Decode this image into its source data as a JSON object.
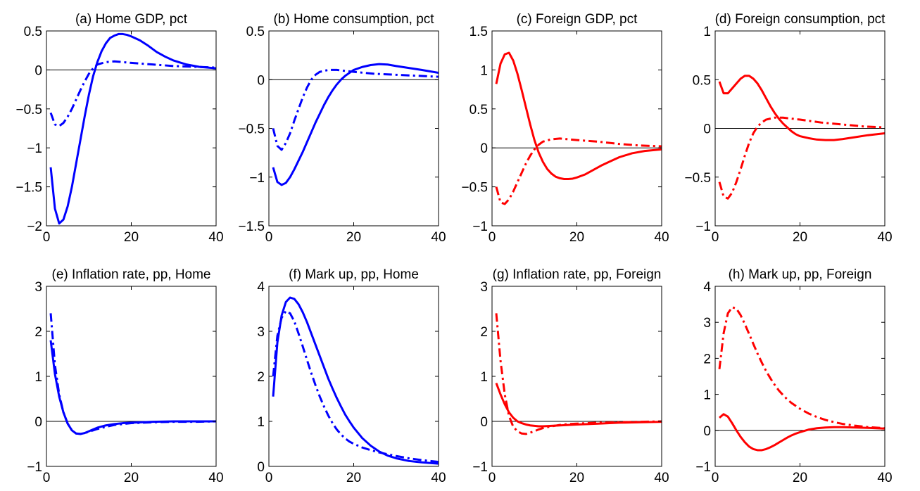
{
  "colors": {
    "blue": "#0000ff",
    "red": "#ff0000",
    "zero_line": "#000000",
    "axes": "#000000"
  },
  "chart_data": [
    {
      "type": "line",
      "title": "(a) Home GDP, pct",
      "xlabel": "",
      "ylabel": "",
      "xlim": [
        0,
        40
      ],
      "ylim": [
        -2,
        0.5
      ],
      "xticks": [
        0,
        20,
        40
      ],
      "xtick_labels": [
        "0",
        "20",
        "40"
      ],
      "yticks": [
        -2,
        -1.5,
        -1,
        -0.5,
        0,
        0.5
      ],
      "ytick_labels": [
        "−2",
        "−1.5",
        "−1",
        "−0.5",
        "0",
        "0.5"
      ],
      "grid": false,
      "zero_line": true,
      "color": "blue",
      "series": [
        {
          "style": "solid",
          "x": [
            1,
            2,
            3,
            4,
            5,
            6,
            7,
            8,
            9,
            10,
            11,
            12,
            13,
            14,
            15,
            16,
            17,
            18,
            19,
            20,
            22,
            24,
            26,
            28,
            30,
            33,
            36,
            40
          ],
          "y": [
            -1.25,
            -1.78,
            -1.97,
            -1.92,
            -1.75,
            -1.5,
            -1.2,
            -0.9,
            -0.6,
            -0.32,
            -0.08,
            0.1,
            0.24,
            0.34,
            0.41,
            0.44,
            0.46,
            0.46,
            0.45,
            0.43,
            0.38,
            0.31,
            0.23,
            0.17,
            0.12,
            0.07,
            0.04,
            0.02
          ]
        },
        {
          "style": "dashdot",
          "x": [
            1,
            2,
            3,
            4,
            5,
            6,
            7,
            8,
            9,
            10,
            11,
            12,
            14,
            16,
            18,
            20,
            25,
            30,
            35,
            40
          ],
          "y": [
            -0.55,
            -0.7,
            -0.72,
            -0.68,
            -0.6,
            -0.5,
            -0.38,
            -0.26,
            -0.15,
            -0.05,
            0.02,
            0.07,
            0.1,
            0.11,
            0.1,
            0.09,
            0.07,
            0.05,
            0.04,
            0.03
          ]
        }
      ]
    },
    {
      "type": "line",
      "title": "(b) Home consumption, pct",
      "xlabel": "",
      "ylabel": "",
      "xlim": [
        0,
        40
      ],
      "ylim": [
        -1.5,
        0.5
      ],
      "xticks": [
        0,
        20,
        40
      ],
      "xtick_labels": [
        "0",
        "20",
        "40"
      ],
      "yticks": [
        -1.5,
        -1,
        -0.5,
        0,
        0.5
      ],
      "ytick_labels": [
        "−1.5",
        "−1",
        "−0.5",
        "0",
        "0.5"
      ],
      "grid": false,
      "zero_line": true,
      "color": "blue",
      "series": [
        {
          "style": "solid",
          "x": [
            1,
            2,
            3,
            4,
            5,
            6,
            7,
            8,
            9,
            10,
            11,
            12,
            13,
            14,
            15,
            16,
            17,
            18,
            19,
            20,
            22,
            24,
            26,
            28,
            30,
            33,
            36,
            40
          ],
          "y": [
            -0.9,
            -1.05,
            -1.08,
            -1.06,
            -1.0,
            -0.92,
            -0.83,
            -0.74,
            -0.64,
            -0.54,
            -0.44,
            -0.35,
            -0.26,
            -0.18,
            -0.11,
            -0.05,
            0.0,
            0.04,
            0.07,
            0.1,
            0.13,
            0.15,
            0.16,
            0.155,
            0.14,
            0.12,
            0.1,
            0.07
          ]
        },
        {
          "style": "dashdot",
          "x": [
            1,
            2,
            3,
            4,
            5,
            6,
            7,
            8,
            9,
            10,
            11,
            12,
            14,
            16,
            18,
            20,
            25,
            30,
            35,
            40
          ],
          "y": [
            -0.5,
            -0.68,
            -0.72,
            -0.65,
            -0.55,
            -0.42,
            -0.3,
            -0.18,
            -0.08,
            0.0,
            0.05,
            0.08,
            0.1,
            0.1,
            0.09,
            0.08,
            0.06,
            0.05,
            0.04,
            0.03
          ]
        }
      ]
    },
    {
      "type": "line",
      "title": "(c) Foreign GDP, pct",
      "xlabel": "",
      "ylabel": "",
      "xlim": [
        0,
        40
      ],
      "ylim": [
        -1,
        1.5
      ],
      "xticks": [
        0,
        20,
        40
      ],
      "xtick_labels": [
        "0",
        "20",
        "40"
      ],
      "yticks": [
        -1,
        -0.5,
        0,
        0.5,
        1,
        1.5
      ],
      "ytick_labels": [
        "−1",
        "−0.5",
        "0",
        "0.5",
        "1",
        "1.5"
      ],
      "grid": false,
      "zero_line": true,
      "color": "red",
      "series": [
        {
          "style": "solid",
          "x": [
            1,
            2,
            3,
            4,
            5,
            6,
            7,
            8,
            9,
            10,
            11,
            12,
            13,
            14,
            15,
            16,
            17,
            18,
            19,
            20,
            22,
            24,
            26,
            28,
            30,
            33,
            36,
            40
          ],
          "y": [
            0.82,
            1.08,
            1.2,
            1.22,
            1.12,
            0.95,
            0.74,
            0.52,
            0.3,
            0.1,
            -0.06,
            -0.18,
            -0.27,
            -0.33,
            -0.37,
            -0.39,
            -0.4,
            -0.4,
            -0.395,
            -0.38,
            -0.34,
            -0.28,
            -0.22,
            -0.17,
            -0.12,
            -0.07,
            -0.04,
            -0.02
          ]
        },
        {
          "style": "dashdot",
          "x": [
            1,
            2,
            3,
            4,
            5,
            6,
            7,
            8,
            9,
            10,
            11,
            12,
            14,
            16,
            18,
            20,
            25,
            30,
            35,
            40
          ],
          "y": [
            -0.5,
            -0.7,
            -0.72,
            -0.66,
            -0.56,
            -0.44,
            -0.32,
            -0.2,
            -0.1,
            -0.02,
            0.04,
            0.08,
            0.11,
            0.12,
            0.11,
            0.1,
            0.08,
            0.05,
            0.03,
            0.02
          ]
        }
      ]
    },
    {
      "type": "line",
      "title": "(d) Foreign consumption, pct",
      "xlabel": "",
      "ylabel": "",
      "xlim": [
        0,
        40
      ],
      "ylim": [
        -1,
        1
      ],
      "xticks": [
        0,
        20,
        40
      ],
      "xtick_labels": [
        "0",
        "20",
        "40"
      ],
      "yticks": [
        -1,
        -0.5,
        0,
        0.5,
        1
      ],
      "ytick_labels": [
        "−1",
        "−0.5",
        "0",
        "0.5",
        "1"
      ],
      "grid": false,
      "zero_line": true,
      "color": "red",
      "series": [
        {
          "style": "solid",
          "x": [
            1,
            2,
            3,
            4,
            5,
            6,
            7,
            8,
            9,
            10,
            11,
            12,
            13,
            14,
            15,
            16,
            17,
            18,
            19,
            20,
            22,
            24,
            26,
            28,
            30,
            33,
            36,
            40
          ],
          "y": [
            0.48,
            0.36,
            0.36,
            0.41,
            0.46,
            0.51,
            0.54,
            0.54,
            0.51,
            0.46,
            0.39,
            0.31,
            0.23,
            0.16,
            0.1,
            0.05,
            0.01,
            -0.03,
            -0.06,
            -0.08,
            -0.1,
            -0.115,
            -0.12,
            -0.12,
            -0.11,
            -0.09,
            -0.07,
            -0.05
          ]
        },
        {
          "style": "dashdot",
          "x": [
            1,
            2,
            3,
            4,
            5,
            6,
            7,
            8,
            9,
            10,
            11,
            12,
            14,
            16,
            18,
            20,
            25,
            30,
            35,
            40
          ],
          "y": [
            -0.55,
            -0.7,
            -0.72,
            -0.66,
            -0.55,
            -0.42,
            -0.28,
            -0.15,
            -0.05,
            0.02,
            0.06,
            0.09,
            0.11,
            0.11,
            0.1,
            0.09,
            0.06,
            0.04,
            0.02,
            0.01
          ]
        }
      ]
    },
    {
      "type": "line",
      "title": "(e) Inflation rate, pp, Home",
      "xlabel": "",
      "ylabel": "",
      "xlim": [
        0,
        40
      ],
      "ylim": [
        -1,
        3
      ],
      "xticks": [
        0,
        20,
        40
      ],
      "xtick_labels": [
        "0",
        "20",
        "40"
      ],
      "yticks": [
        -1,
        0,
        1,
        2,
        3
      ],
      "ytick_labels": [
        "−1",
        "0",
        "1",
        "2",
        "3"
      ],
      "grid": false,
      "zero_line": true,
      "color": "blue",
      "series": [
        {
          "style": "solid",
          "x": [
            1,
            2,
            3,
            4,
            5,
            6,
            7,
            8,
            9,
            10,
            11,
            12,
            14,
            16,
            18,
            20,
            25,
            30,
            35,
            40
          ],
          "y": [
            1.8,
            1.05,
            0.55,
            0.2,
            -0.05,
            -0.2,
            -0.27,
            -0.28,
            -0.26,
            -0.22,
            -0.18,
            -0.14,
            -0.09,
            -0.06,
            -0.04,
            -0.03,
            -0.01,
            0.0,
            0.0,
            0.0
          ]
        },
        {
          "style": "dashdot",
          "x": [
            1,
            2,
            3,
            4,
            5,
            6,
            7,
            8,
            9,
            10,
            11,
            12,
            14,
            16,
            18,
            20,
            25,
            30,
            35,
            40
          ],
          "y": [
            2.4,
            1.25,
            0.6,
            0.2,
            -0.05,
            -0.2,
            -0.27,
            -0.28,
            -0.26,
            -0.23,
            -0.2,
            -0.17,
            -0.12,
            -0.08,
            -0.06,
            -0.04,
            -0.02,
            -0.01,
            -0.01,
            0.0
          ]
        }
      ]
    },
    {
      "type": "line",
      "title": "(f) Mark up, pp, Home",
      "xlabel": "",
      "ylabel": "",
      "xlim": [
        0,
        40
      ],
      "ylim": [
        0,
        4
      ],
      "xticks": [
        0,
        20,
        40
      ],
      "xtick_labels": [
        "0",
        "20",
        "40"
      ],
      "yticks": [
        0,
        1,
        2,
        3,
        4
      ],
      "ytick_labels": [
        "0",
        "1",
        "2",
        "3",
        "4"
      ],
      "grid": false,
      "zero_line": false,
      "color": "blue",
      "series": [
        {
          "style": "solid",
          "x": [
            1,
            2,
            3,
            4,
            5,
            6,
            7,
            8,
            9,
            10,
            11,
            12,
            13,
            14,
            15,
            16,
            17,
            18,
            19,
            20,
            22,
            24,
            26,
            28,
            30,
            33,
            36,
            40
          ],
          "y": [
            1.55,
            2.75,
            3.35,
            3.65,
            3.75,
            3.72,
            3.6,
            3.42,
            3.2,
            2.95,
            2.7,
            2.45,
            2.2,
            1.95,
            1.73,
            1.52,
            1.33,
            1.15,
            1.0,
            0.86,
            0.63,
            0.46,
            0.33,
            0.24,
            0.18,
            0.12,
            0.09,
            0.06
          ]
        },
        {
          "style": "dashdot",
          "x": [
            1,
            2,
            3,
            4,
            5,
            6,
            7,
            8,
            9,
            10,
            11,
            12,
            13,
            14,
            15,
            16,
            17,
            18,
            19,
            20,
            22,
            24,
            26,
            28,
            30,
            33,
            36,
            40
          ],
          "y": [
            2.0,
            2.9,
            3.3,
            3.45,
            3.4,
            3.22,
            2.95,
            2.66,
            2.36,
            2.07,
            1.8,
            1.55,
            1.33,
            1.13,
            0.96,
            0.82,
            0.71,
            0.62,
            0.55,
            0.5,
            0.42,
            0.36,
            0.31,
            0.27,
            0.23,
            0.18,
            0.14,
            0.1
          ]
        }
      ]
    },
    {
      "type": "line",
      "title": "(g) Inflation rate, pp, Foreign",
      "xlabel": "",
      "ylabel": "",
      "xlim": [
        0,
        40
      ],
      "ylim": [
        -1,
        3
      ],
      "xticks": [
        0,
        20,
        40
      ],
      "xtick_labels": [
        "0",
        "20",
        "40"
      ],
      "yticks": [
        -1,
        0,
        1,
        2,
        3
      ],
      "ytick_labels": [
        "−1",
        "0",
        "1",
        "2",
        "3"
      ],
      "grid": false,
      "zero_line": true,
      "color": "red",
      "series": [
        {
          "style": "solid",
          "x": [
            1,
            2,
            3,
            4,
            5,
            6,
            7,
            8,
            9,
            10,
            11,
            12,
            14,
            16,
            18,
            20,
            25,
            30,
            35,
            40
          ],
          "y": [
            0.85,
            0.6,
            0.38,
            0.2,
            0.08,
            0.0,
            -0.04,
            -0.07,
            -0.09,
            -0.1,
            -0.11,
            -0.11,
            -0.1,
            -0.09,
            -0.08,
            -0.07,
            -0.05,
            -0.03,
            -0.02,
            -0.01
          ]
        },
        {
          "style": "dashdot",
          "x": [
            1,
            2,
            3,
            4,
            5,
            6,
            7,
            8,
            9,
            10,
            11,
            12,
            14,
            16,
            18,
            20,
            25,
            30,
            35,
            40
          ],
          "y": [
            2.4,
            1.35,
            0.6,
            0.12,
            -0.12,
            -0.22,
            -0.27,
            -0.28,
            -0.25,
            -0.22,
            -0.18,
            -0.15,
            -0.11,
            -0.08,
            -0.06,
            -0.05,
            -0.03,
            -0.02,
            -0.01,
            0.0
          ]
        }
      ]
    },
    {
      "type": "line",
      "title": "(h) Mark up, pp, Foreign",
      "xlabel": "",
      "ylabel": "",
      "xlim": [
        0,
        40
      ],
      "ylim": [
        -1,
        4
      ],
      "xticks": [
        0,
        20,
        40
      ],
      "xtick_labels": [
        "0",
        "20",
        "40"
      ],
      "yticks": [
        -1,
        0,
        1,
        2,
        3,
        4
      ],
      "ytick_labels": [
        "−1",
        "0",
        "1",
        "2",
        "3",
        "4"
      ],
      "grid": false,
      "zero_line": true,
      "color": "red",
      "series": [
        {
          "style": "solid",
          "x": [
            1,
            2,
            3,
            4,
            5,
            6,
            7,
            8,
            9,
            10,
            11,
            12,
            13,
            14,
            15,
            16,
            17,
            18,
            19,
            20,
            22,
            24,
            26,
            28,
            30,
            33,
            36,
            40
          ],
          "y": [
            0.35,
            0.45,
            0.38,
            0.2,
            0.0,
            -0.18,
            -0.33,
            -0.45,
            -0.52,
            -0.55,
            -0.55,
            -0.52,
            -0.47,
            -0.41,
            -0.34,
            -0.27,
            -0.2,
            -0.14,
            -0.09,
            -0.05,
            0.02,
            0.06,
            0.08,
            0.09,
            0.09,
            0.08,
            0.07,
            0.05
          ]
        },
        {
          "style": "dashdot",
          "x": [
            1,
            2,
            3,
            4,
            5,
            6,
            7,
            8,
            9,
            10,
            11,
            12,
            13,
            14,
            15,
            16,
            17,
            18,
            19,
            20,
            22,
            24,
            26,
            28,
            30,
            33,
            36,
            40
          ],
          "y": [
            1.7,
            2.7,
            3.25,
            3.42,
            3.38,
            3.2,
            2.95,
            2.68,
            2.4,
            2.13,
            1.88,
            1.65,
            1.45,
            1.27,
            1.11,
            0.98,
            0.86,
            0.76,
            0.68,
            0.6,
            0.47,
            0.37,
            0.29,
            0.23,
            0.18,
            0.13,
            0.09,
            0.06
          ]
        }
      ]
    }
  ]
}
